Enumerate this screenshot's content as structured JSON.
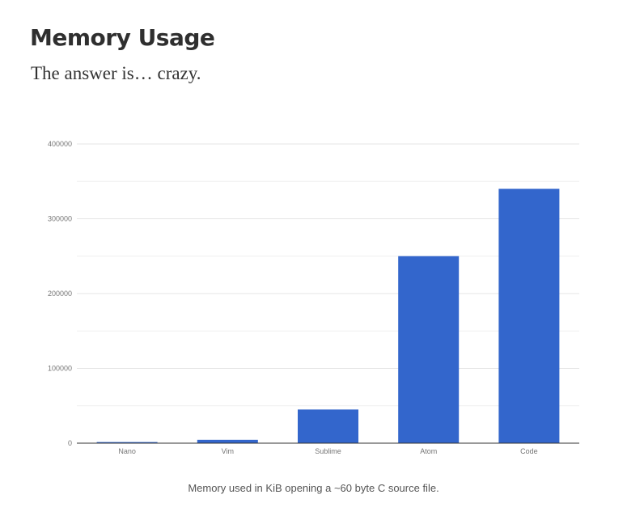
{
  "header": {
    "title": "Memory Usage",
    "subtitle": "The answer is… crazy."
  },
  "caption": "Memory used in KiB opening a ~60 byte C source file.",
  "colors": {
    "bar": "#3366cc",
    "grid": "#e4e4e4",
    "axis": "#333333",
    "tick_text": "#757575"
  },
  "chart_data": {
    "type": "bar",
    "categories": [
      "Nano",
      "Vim",
      "Sublime",
      "Atom",
      "Code"
    ],
    "values": [
      1500,
      4500,
      45000,
      250000,
      340000
    ],
    "ylim": [
      0,
      400000
    ],
    "yticks": [
      "0",
      "100000",
      "200000",
      "300000",
      "400000"
    ],
    "grid": true,
    "minor_grid": true,
    "legend": "none"
  }
}
